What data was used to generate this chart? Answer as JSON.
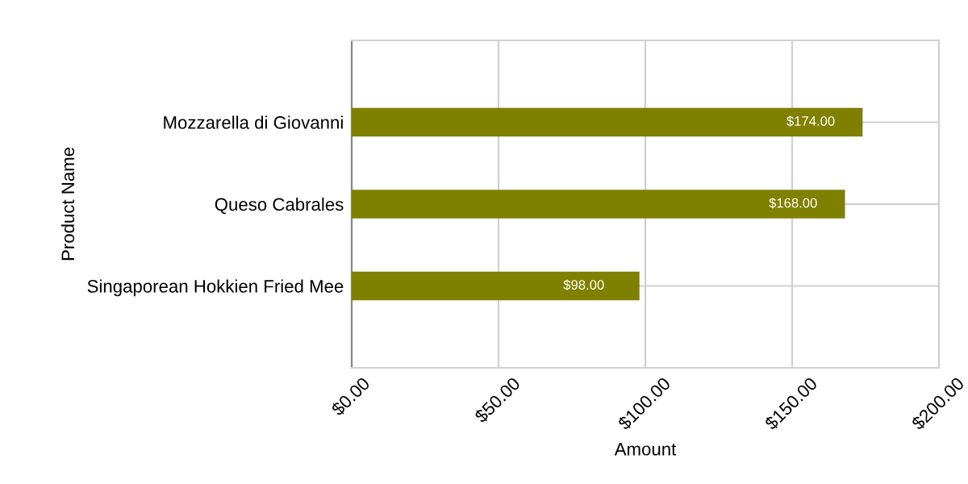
{
  "chart_data": {
    "type": "bar",
    "orientation": "horizontal",
    "categories": [
      "Mozzarella di Giovanni",
      "Queso Cabrales",
      "Singaporean Hokkien Fried Mee"
    ],
    "values": [
      174,
      168,
      98
    ],
    "color": "#808000",
    "value_labels": [
      "$174.00",
      "$168.00",
      "$98.00"
    ],
    "xlabel": "Amount",
    "ylabel": "Product Name",
    "xlim": [
      0,
      200
    ],
    "xticks": [
      {
        "value": 0,
        "label": "$0.00"
      },
      {
        "value": 50,
        "label": "$50.00"
      },
      {
        "value": 100,
        "label": "$100.00"
      },
      {
        "value": 150,
        "label": "$150.00"
      },
      {
        "value": 200,
        "label": "$200.00"
      }
    ],
    "grid": true
  }
}
